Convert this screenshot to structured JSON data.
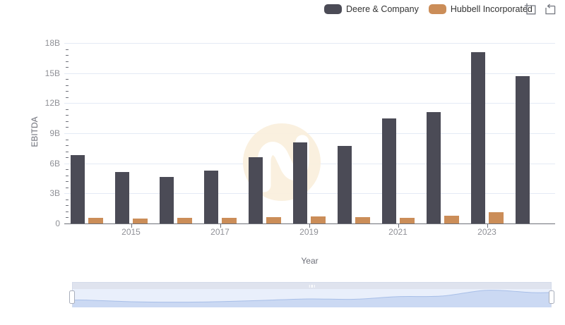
{
  "legend": {
    "items": [
      {
        "label": "Deere & Company",
        "color": "#4B4B56"
      },
      {
        "label": "Hubbell Incorporated",
        "color": "#CB8D58"
      }
    ]
  },
  "toolbox": {
    "tools": [
      {
        "name": "box-zoom",
        "icon": "box-zoom-icon"
      },
      {
        "name": "restore",
        "icon": "restore-icon"
      }
    ]
  },
  "chart_data": {
    "type": "bar",
    "title": "",
    "xlabel": "Year",
    "ylabel": "EBITDA",
    "categories": [
      "2014",
      "2015",
      "2016",
      "2017",
      "2018",
      "2019",
      "2020",
      "2021",
      "2022",
      "2023",
      "2024"
    ],
    "x_axis_tick_labels": [
      "2015",
      "2017",
      "2019",
      "2021",
      "2023"
    ],
    "y_axis_tick_labels": [
      "0",
      "3B",
      "6B",
      "9B",
      "12B",
      "15B",
      "18B"
    ],
    "ylim": [
      0,
      18
    ],
    "y_major_step": 3,
    "y_minor_step": 0.6,
    "unit": "billions",
    "grid": true,
    "legend_position": "top-right",
    "series": [
      {
        "name": "Deere & Company",
        "color": "#4B4B56",
        "values": [
          6.85,
          5.15,
          4.65,
          5.25,
          6.6,
          8.1,
          7.7,
          10.45,
          11.1,
          17.1,
          14.7
        ]
      },
      {
        "name": "Hubbell Incorporated",
        "color": "#CB8D58",
        "values": [
          0.55,
          0.48,
          0.53,
          0.55,
          0.63,
          0.68,
          0.6,
          0.58,
          0.77,
          1.1,
          null
        ]
      }
    ]
  },
  "datazoom": {
    "type": "slider",
    "shadow_series": "Deere & Company",
    "grip_icon": "drag-grip-icon"
  },
  "colors": {
    "grid_line": "#E4EAF5",
    "axis_line": "#6E7079",
    "tick_label": "#8F9096",
    "axis_title": "#6E7079",
    "legend_text": "#333333",
    "watermark_circle": "#FAEFDC",
    "slider_bg": "#E9EFFB",
    "slider_strip": "#DFE3EE",
    "slider_area_fill": "#CBD9F3",
    "slider_area_line": "#A8BFE8"
  }
}
